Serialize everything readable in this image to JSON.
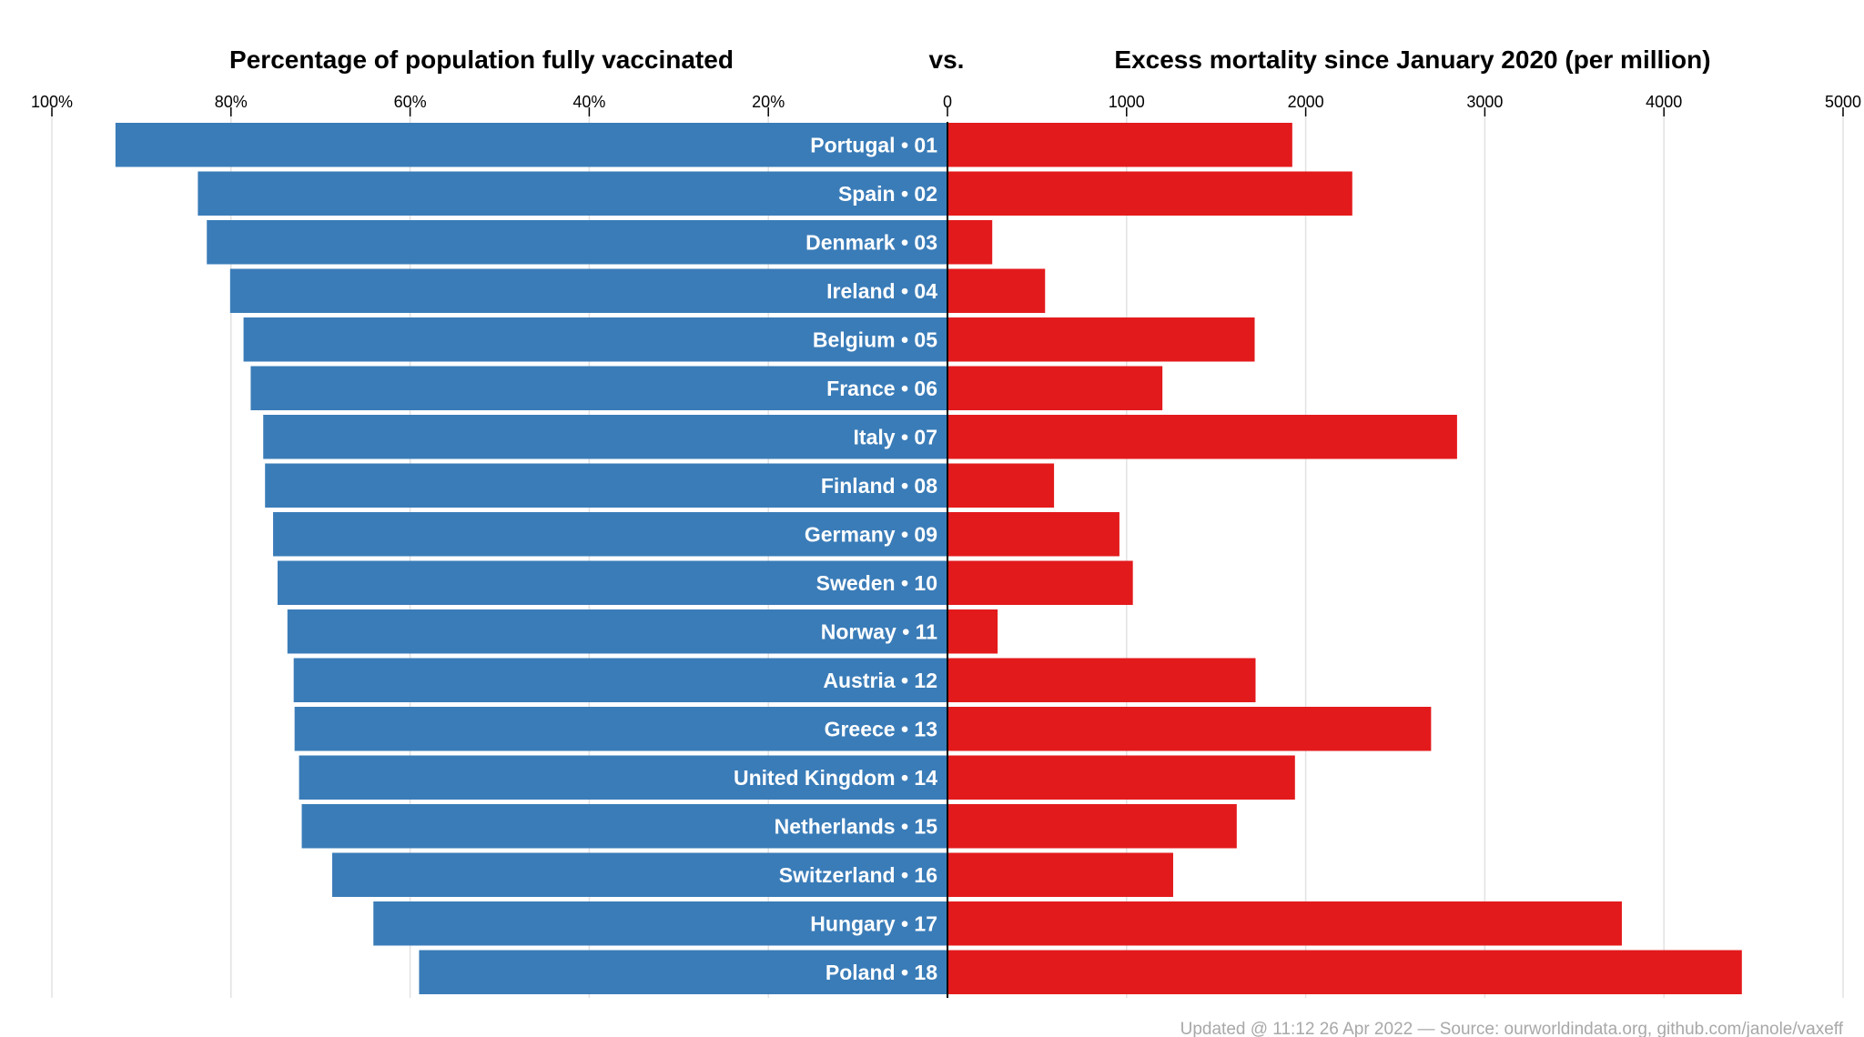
{
  "chart_data": {
    "type": "bar",
    "layout": "diverging",
    "title_left": "Percentage of population fully vaccinated",
    "title_mid": "vs.",
    "title_right": "Excess mortality since January 2020 (per million)",
    "categories": [
      "Portugal • 01",
      "Spain • 02",
      "Denmark • 03",
      "Ireland • 04",
      "Belgium • 05",
      "France • 06",
      "Italy • 07",
      "Finland • 08",
      "Germany • 09",
      "Sweden • 10",
      "Norway • 11",
      "Austria • 12",
      "Greece • 13",
      "United Kingdom • 14",
      "Netherlands • 15",
      "Switzerland • 16",
      "Hungary • 17",
      "Poland • 18"
    ],
    "series": [
      {
        "values": [
          92.9,
          83.7,
          82.7,
          80.1,
          78.6,
          77.8,
          76.4,
          76.2,
          75.3,
          74.8,
          73.7,
          73.0,
          72.9,
          72.4,
          72.1,
          68.7,
          64.1,
          59.0
        ],
        "color": "#3a7cb8",
        "axis_ticks": [
          "100%",
          "80%",
          "60%",
          "40%",
          "20%",
          "0"
        ],
        "xlim": [
          0,
          100
        ]
      },
      {
        "values": [
          1925,
          2260,
          250,
          545,
          1715,
          1200,
          2845,
          595,
          960,
          1035,
          280,
          1720,
          2700,
          1940,
          1615,
          1260,
          3765,
          4435
        ],
        "color": "#e31a1c",
        "axis_ticks": [
          "1000",
          "2000",
          "3000",
          "4000",
          "5000"
        ],
        "xlim": [
          0,
          5000
        ]
      }
    ],
    "grid": true,
    "footer": "Updated @ 11:12 26 Apr 2022 — Source: ourworldindata.org, github.com/janole/vaxeff"
  }
}
